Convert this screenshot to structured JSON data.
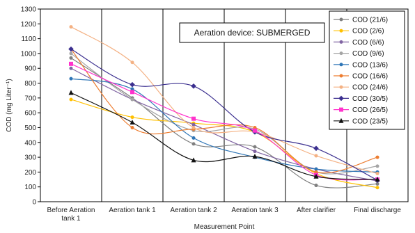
{
  "chart_data": {
    "type": "line",
    "title": "",
    "xlabel": "Measurement Point",
    "ylabel": "COD (mg Liter⁻¹)",
    "ylim": [
      0,
      1300
    ],
    "ytick_step": 100,
    "grid": "vertical",
    "legend_position": "top-right",
    "annotation": "Aeration device: SUBMERGED",
    "categories": [
      [
        "Before Aeration",
        "tank 1"
      ],
      [
        "Aeration tank 1"
      ],
      [
        "Aeration tank 2"
      ],
      [
        "Aeration tank 3"
      ],
      [
        "After clarifier"
      ],
      [
        "Final discharge"
      ]
    ],
    "series": [
      {
        "name": "COD (21/6)",
        "color": "#7f7f7f",
        "marker": "circle",
        "values": [
          970,
          700,
          390,
          370,
          110,
          120
        ]
      },
      {
        "name": "COD (2/6)",
        "color": "#ffc000",
        "marker": "circle",
        "values": [
          690,
          570,
          530,
          470,
          190,
          95
        ]
      },
      {
        "name": "COD (6/6)",
        "color": "#8064a2",
        "marker": "circle",
        "values": [
          900,
          690,
          520,
          340,
          220,
          140
        ]
      },
      {
        "name": "COD (9/6)",
        "color": "#a5a5a5",
        "marker": "circle",
        "values": [
          1000,
          690,
          480,
          490,
          200,
          240
        ]
      },
      {
        "name": "COD (13/6)",
        "color": "#2e75b6",
        "marker": "circle",
        "values": [
          830,
          760,
          430,
          300,
          220,
          200
        ]
      },
      {
        "name": "COD (16/6)",
        "color": "#ed7d31",
        "marker": "circle",
        "values": [
          1030,
          500,
          490,
          500,
          200,
          300
        ]
      },
      {
        "name": "COD (24/6)",
        "color": "#f4b183",
        "marker": "circle",
        "values": [
          1180,
          940,
          500,
          470,
          310,
          190
        ]
      },
      {
        "name": "COD (30/5)",
        "color": "#3b2f8f",
        "marker": "diamond",
        "values": [
          1030,
          790,
          780,
          470,
          360,
          145
        ]
      },
      {
        "name": "COD (26/5)",
        "color": "#ff33cc",
        "marker": "square",
        "values": [
          930,
          740,
          560,
          480,
          180,
          150
        ]
      },
      {
        "name": "COD (23/5)",
        "color": "#111111",
        "marker": "triangle",
        "values": [
          735,
          535,
          280,
          305,
          170,
          150
        ]
      }
    ]
  }
}
